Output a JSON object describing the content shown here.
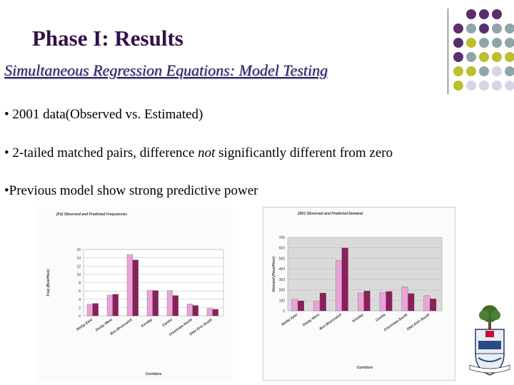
{
  "slide": {
    "title": "Phase I: Results",
    "subtitle": "Simultaneous Regression Equations: Model Testing",
    "bullets": {
      "b1": "• 2001 data(Observed vs. Estimated)",
      "b2_pre": "• 2-tailed matched pairs, difference ",
      "b2_em": "not",
      "b2_post": " significantly different  from zero",
      "b3": "•Previous model show strong predictive power"
    }
  },
  "colors": {
    "title": "#33104a",
    "subtitle": "#2a1c6e",
    "dot_purple": "#5a2d6e",
    "dot_gray": "#8fa5a8",
    "dot_olive": "#bdbf2e",
    "dot_lavender": "#d6d4e6",
    "bar_light": "#e8a4d8",
    "bar_dark": "#8b1f5a"
  },
  "chart_data": [
    {
      "type": "bar",
      "title": "(Fit) Observed and Predicted Frequencies",
      "xlabel": "Corridors",
      "ylabel": "Freq (Bus/Hour)",
      "ylim": [
        0,
        16
      ],
      "yticks": [
        0,
        2,
        4,
        6,
        8,
        10,
        12,
        14,
        16
      ],
      "categories": [
        "Derby East",
        "Derby West",
        "Bus-Brunswick",
        "Kinsley",
        "Centre",
        "Crestview-North",
        "Glen Erin South"
      ],
      "series": [
        {
          "values": [
            2.8,
            5.0,
            14.8,
            6.2,
            6.1,
            2.9,
            1.8
          ]
        },
        {
          "values": [
            3.0,
            5.2,
            13.5,
            6.1,
            4.9,
            2.5,
            1.6
          ]
        }
      ]
    },
    {
      "type": "bar",
      "title": "2001 Observed and Predicted Demand",
      "xlabel": "Corridors",
      "ylabel": "Demand (Pass/Hour)",
      "ylim": [
        0,
        700
      ],
      "yticks": [
        0,
        100,
        200,
        300,
        400,
        500,
        600,
        700
      ],
      "categories": [
        "Derby East",
        "Derby West",
        "Bus-Brunswick",
        "Kinsley",
        "Centre",
        "Crestview-South",
        "Glen Erin South"
      ],
      "series": [
        {
          "values": [
            110,
            90,
            480,
            170,
            175,
            230,
            145
          ]
        },
        {
          "values": [
            95,
            170,
            600,
            190,
            185,
            165,
            115
          ]
        }
      ]
    }
  ]
}
